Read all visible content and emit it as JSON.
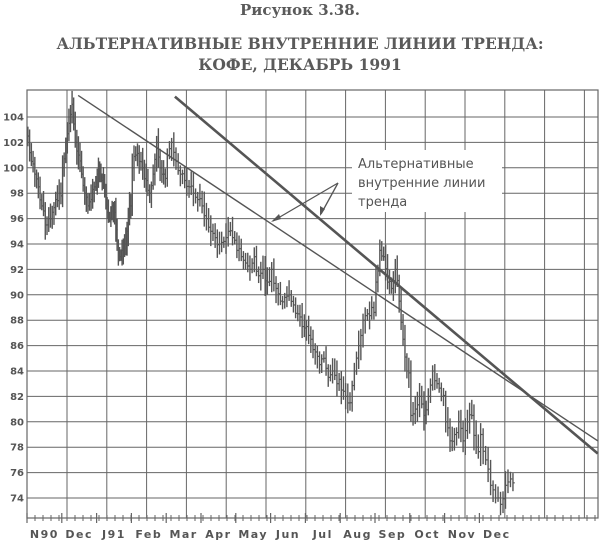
{
  "figure_label": "Рисунок 3.38.",
  "title_line1": "АЛЬТЕРНАТИВНЫЕ ВНУТРЕННИЕ ЛИНИИ ТРЕНДА:",
  "title_line2": "КОФЕ, ДЕКАБРЬ 1991",
  "chart_data": {
    "type": "bar",
    "subtype": "ohlc-price-bars",
    "x_axis": {
      "categories": [
        "N90",
        "Dec",
        "J91",
        "Feb",
        "Mar",
        "Apr",
        "May",
        "Jun",
        "Jul",
        "Aug",
        "Sep",
        "Oct",
        "Nov",
        "Dec"
      ]
    },
    "y_axis": {
      "ticks": [
        104,
        102,
        100,
        98,
        96,
        94,
        92,
        90,
        88,
        86,
        84,
        82,
        80,
        78,
        76,
        74
      ],
      "ylim": [
        72.4,
        106.1
      ]
    },
    "grid": true,
    "series_closes_by_month": [
      [
        102.5,
        100.5,
        99.5,
        98.5,
        97,
        95.5,
        96,
        96.5,
        97.5,
        98
      ],
      [
        100,
        102,
        103.5,
        105,
        102,
        101,
        99.5,
        98,
        97,
        97.5,
        98.5
      ],
      [
        99.5,
        100,
        99,
        98,
        96.5,
        96,
        97,
        96.5,
        94,
        93,
        93.5,
        94,
        95,
        97
      ],
      [
        100,
        101,
        100.5,
        100,
        99,
        98,
        99.5,
        102,
        100,
        99.5
      ],
      [
        101,
        102,
        100.5,
        99.5,
        99,
        98.5,
        98,
        97.5
      ],
      [
        97,
        96,
        95,
        94.5,
        94,
        94.2,
        95,
        94.5
      ],
      [
        93.5,
        93,
        92.5,
        92,
        93,
        91.5,
        92,
        91
      ],
      [
        92,
        90.5,
        89.5,
        89.8,
        90,
        89.2,
        88.5,
        87.5
      ],
      [
        87.5,
        86.5,
        85.5,
        84.5,
        85,
        83.5,
        84,
        83
      ],
      [
        82.5,
        82,
        81.5,
        84,
        86,
        88,
        88.5,
        89
      ],
      [
        91,
        93.5,
        93,
        91,
        90.5,
        92,
        89.5,
        86.5,
        84
      ],
      [
        80.5,
        81,
        82,
        80.5,
        82,
        84,
        83,
        82
      ],
      [
        80,
        78.5,
        79,
        80,
        78.5,
        80,
        80.5,
        78
      ],
      [
        79,
        77,
        75,
        74,
        73.5,
        75,
        75.5
      ]
    ],
    "trendlines": [
      {
        "style": "thin",
        "start": {
          "month": 1.47,
          "value": 105.7
        },
        "end": {
          "month": 16.4,
          "value": 78.5
        }
      },
      {
        "style": "thick",
        "start": {
          "month": 4.25,
          "value": 105.6
        },
        "end": {
          "month": 16.4,
          "value": 77.5
        }
      }
    ],
    "annotation": {
      "lines": [
        "Альтернативные",
        "внутренние линии",
        "тренда"
      ]
    },
    "colors": {
      "ink": "#555555",
      "grid": "#666666"
    }
  }
}
